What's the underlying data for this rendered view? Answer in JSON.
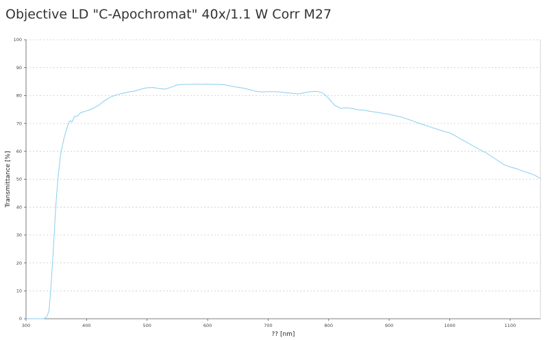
{
  "title": "Objective LD \"C-Apochromat\" 40x/1.1 W Corr M27",
  "chart_data": {
    "type": "line",
    "title": "Objective LD \"C-Apochromat\" 40x/1.1 W Corr M27",
    "xlabel": "?? [nm]",
    "ylabel": "Transmittance [%]",
    "xlim": [
      300,
      1150
    ],
    "ylim": [
      0,
      100
    ],
    "xticks": [
      300,
      400,
      500,
      600,
      700,
      800,
      900,
      1000,
      1100
    ],
    "yticks": [
      0,
      10,
      20,
      30,
      40,
      50,
      60,
      70,
      80,
      90,
      100
    ],
    "grid": true,
    "colors": {
      "line": "#87cdef",
      "grid": "#c8c8c8",
      "axis": "#555555"
    },
    "series": [
      {
        "x": [
          300,
          330,
          335,
          338,
          340,
          342,
          344,
          346,
          348,
          350,
          352,
          354,
          356,
          358,
          360,
          362,
          365,
          368,
          370,
          373,
          376,
          380,
          385,
          390,
          395,
          400,
          410,
          420,
          430,
          440,
          450,
          460,
          470,
          480,
          490,
          500,
          510,
          520,
          530,
          540,
          550,
          560,
          570,
          580,
          590,
          600,
          610,
          620,
          630,
          640,
          650,
          660,
          670,
          680,
          690,
          700,
          710,
          720,
          730,
          740,
          750,
          760,
          770,
          780,
          790,
          800,
          810,
          820,
          830,
          840,
          850,
          860,
          870,
          880,
          890,
          900,
          910,
          920,
          930,
          940,
          950,
          960,
          970,
          980,
          990,
          1000,
          1010,
          1020,
          1030,
          1040,
          1050,
          1060,
          1070,
          1080,
          1090,
          1100,
          1110,
          1120,
          1130,
          1140,
          1150
        ],
        "values": [
          0,
          0,
          1,
          3,
          8,
          14,
          21,
          28,
          36,
          43,
          48,
          53,
          57,
          60,
          62,
          64,
          66.5,
          68.5,
          70,
          71,
          70.5,
          72.5,
          72.6,
          73.8,
          74.2,
          74.5,
          75.3,
          76.5,
          78.2,
          79.5,
          80.3,
          80.8,
          81.3,
          81.6,
          82.3,
          82.8,
          82.9,
          82.5,
          82.3,
          83,
          83.8,
          84,
          84,
          84.1,
          84,
          84.1,
          84,
          84,
          83.8,
          83.3,
          83,
          82.6,
          82.1,
          81.5,
          81.3,
          81.4,
          81.4,
          81.3,
          81,
          80.8,
          80.6,
          81,
          81.4,
          81.5,
          81,
          79,
          76.5,
          75.4,
          75.6,
          75.3,
          74.9,
          74.7,
          74.3,
          74,
          73.6,
          73.3,
          72.8,
          72.3,
          71.6,
          70.8,
          70,
          69.3,
          68.6,
          67.9,
          67.2,
          66.6,
          65.5,
          64.2,
          63,
          61.8,
          60.6,
          59.5,
          58.1,
          56.6,
          55.2,
          54.4,
          53.8,
          53,
          52.3,
          51.5,
          50.3
        ]
      }
    ]
  }
}
